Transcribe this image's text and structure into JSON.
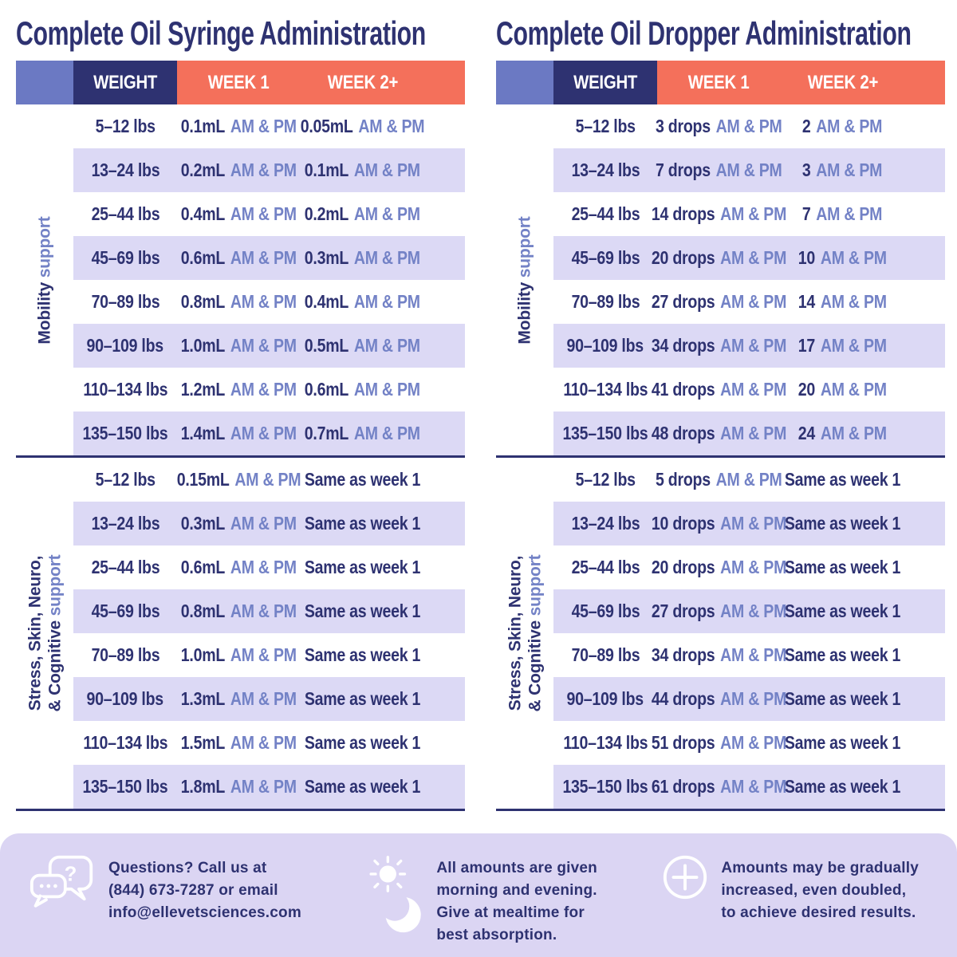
{
  "colors": {
    "navy": "#2E3271",
    "periwinkle_block": "#6B79C3",
    "periwinkle_text": "#7382C6",
    "coral": "#F4705B",
    "row_stripe": "#DCD9F5",
    "footer_background": "#DBD5F3",
    "white": "#FFFFFF"
  },
  "tables": [
    {
      "title": "Complete Oil Syringe Administration",
      "header": {
        "weight": "WEIGHT",
        "week1": "WEEK 1",
        "week2": "WEEK 2+"
      },
      "sections": [
        {
          "label": [
            {
              "dark": "Mobility ",
              "light": "support"
            }
          ],
          "rows": [
            {
              "weight": "5–12 lbs",
              "week1": {
                "value": "0.1mL",
                "ampm": "AM & PM"
              },
              "week2": {
                "value": "0.05mL",
                "ampm": "AM & PM"
              }
            },
            {
              "weight": "13–24 lbs",
              "week1": {
                "value": "0.2mL",
                "ampm": "AM & PM"
              },
              "week2": {
                "value": "0.1mL",
                "ampm": "AM & PM"
              }
            },
            {
              "weight": "25–44 lbs",
              "week1": {
                "value": "0.4mL",
                "ampm": "AM & PM"
              },
              "week2": {
                "value": "0.2mL",
                "ampm": "AM & PM"
              }
            },
            {
              "weight": "45–69 lbs",
              "week1": {
                "value": "0.6mL",
                "ampm": "AM & PM"
              },
              "week2": {
                "value": "0.3mL",
                "ampm": "AM & PM"
              }
            },
            {
              "weight": "70–89 lbs",
              "week1": {
                "value": "0.8mL",
                "ampm": "AM & PM"
              },
              "week2": {
                "value": "0.4mL",
                "ampm": "AM & PM"
              }
            },
            {
              "weight": "90–109 lbs",
              "week1": {
                "value": "1.0mL",
                "ampm": "AM & PM"
              },
              "week2": {
                "value": "0.5mL",
                "ampm": "AM & PM"
              }
            },
            {
              "weight": "110–134 lbs",
              "week1": {
                "value": "1.2mL",
                "ampm": "AM & PM"
              },
              "week2": {
                "value": "0.6mL",
                "ampm": "AM & PM"
              }
            },
            {
              "weight": "135–150 lbs",
              "week1": {
                "value": "1.4mL",
                "ampm": "AM & PM"
              },
              "week2": {
                "value": "0.7mL",
                "ampm": "AM & PM"
              }
            }
          ]
        },
        {
          "label": [
            {
              "dark": "Stress, Skin, Neuro,",
              "light": ""
            },
            {
              "dark": "& Cognitive ",
              "light": "support"
            }
          ],
          "rows": [
            {
              "weight": "5–12 lbs",
              "week1": {
                "value": "0.15mL",
                "ampm": "AM & PM"
              },
              "week2": {
                "value": "Same as week 1",
                "ampm": ""
              }
            },
            {
              "weight": "13–24 lbs",
              "week1": {
                "value": "0.3mL",
                "ampm": "AM & PM"
              },
              "week2": {
                "value": "Same as week 1",
                "ampm": ""
              }
            },
            {
              "weight": "25–44 lbs",
              "week1": {
                "value": "0.6mL",
                "ampm": "AM & PM"
              },
              "week2": {
                "value": "Same as week 1",
                "ampm": ""
              }
            },
            {
              "weight": "45–69 lbs",
              "week1": {
                "value": "0.8mL",
                "ampm": "AM & PM"
              },
              "week2": {
                "value": "Same as week 1",
                "ampm": ""
              }
            },
            {
              "weight": "70–89 lbs",
              "week1": {
                "value": "1.0mL",
                "ampm": "AM & PM"
              },
              "week2": {
                "value": "Same as week 1",
                "ampm": ""
              }
            },
            {
              "weight": "90–109 lbs",
              "week1": {
                "value": "1.3mL",
                "ampm": "AM & PM"
              },
              "week2": {
                "value": "Same as week 1",
                "ampm": ""
              }
            },
            {
              "weight": "110–134 lbs",
              "week1": {
                "value": "1.5mL",
                "ampm": "AM & PM"
              },
              "week2": {
                "value": "Same as week 1",
                "ampm": ""
              }
            },
            {
              "weight": "135–150 lbs",
              "week1": {
                "value": "1.8mL",
                "ampm": "AM & PM"
              },
              "week2": {
                "value": "Same as week 1",
                "ampm": ""
              }
            }
          ]
        }
      ]
    },
    {
      "title": "Complete Oil Dropper Administration",
      "header": {
        "weight": "WEIGHT",
        "week1": "WEEK 1",
        "week2": "WEEK 2+"
      },
      "sections": [
        {
          "label": [
            {
              "dark": "Mobility ",
              "light": "support"
            }
          ],
          "rows": [
            {
              "weight": "5–12 lbs",
              "week1": {
                "value": "3 drops",
                "ampm": "AM & PM"
              },
              "week2": {
                "value": "2",
                "ampm": "AM & PM"
              }
            },
            {
              "weight": "13–24 lbs",
              "week1": {
                "value": "7 drops",
                "ampm": "AM & PM"
              },
              "week2": {
                "value": "3",
                "ampm": "AM & PM"
              }
            },
            {
              "weight": "25–44 lbs",
              "week1": {
                "value": "14 drops",
                "ampm": "AM & PM"
              },
              "week2": {
                "value": "7",
                "ampm": "AM & PM"
              }
            },
            {
              "weight": "45–69 lbs",
              "week1": {
                "value": "20 drops",
                "ampm": "AM & PM"
              },
              "week2": {
                "value": "10",
                "ampm": "AM & PM"
              }
            },
            {
              "weight": "70–89 lbs",
              "week1": {
                "value": "27 drops",
                "ampm": "AM & PM"
              },
              "week2": {
                "value": "14",
                "ampm": "AM & PM"
              }
            },
            {
              "weight": "90–109 lbs",
              "week1": {
                "value": "34 drops",
                "ampm": "AM & PM"
              },
              "week2": {
                "value": "17",
                "ampm": "AM & PM"
              }
            },
            {
              "weight": "110–134 lbs",
              "week1": {
                "value": "41 drops",
                "ampm": "AM & PM"
              },
              "week2": {
                "value": "20",
                "ampm": "AM & PM"
              }
            },
            {
              "weight": "135–150 lbs",
              "week1": {
                "value": "48 drops",
                "ampm": "AM & PM"
              },
              "week2": {
                "value": "24",
                "ampm": "AM & PM"
              }
            }
          ]
        },
        {
          "label": [
            {
              "dark": "Stress, Skin, Neuro,",
              "light": ""
            },
            {
              "dark": "& Cognitive ",
              "light": "support"
            }
          ],
          "rows": [
            {
              "weight": "5–12 lbs",
              "week1": {
                "value": "5 drops",
                "ampm": "AM & PM"
              },
              "week2": {
                "value": "Same as week 1",
                "ampm": ""
              }
            },
            {
              "weight": "13–24 lbs",
              "week1": {
                "value": "10 drops",
                "ampm": "AM & PM"
              },
              "week2": {
                "value": "Same as week 1",
                "ampm": ""
              }
            },
            {
              "weight": "25–44 lbs",
              "week1": {
                "value": "20 drops",
                "ampm": "AM & PM"
              },
              "week2": {
                "value": "Same as week 1",
                "ampm": ""
              }
            },
            {
              "weight": "45–69 lbs",
              "week1": {
                "value": "27 drops",
                "ampm": "AM & PM"
              },
              "week2": {
                "value": "Same as week 1",
                "ampm": ""
              }
            },
            {
              "weight": "70–89 lbs",
              "week1": {
                "value": "34 drops",
                "ampm": "AM & PM"
              },
              "week2": {
                "value": "Same as week 1",
                "ampm": ""
              }
            },
            {
              "weight": "90–109 lbs",
              "week1": {
                "value": "44 drops",
                "ampm": "AM & PM"
              },
              "week2": {
                "value": "Same as week 1",
                "ampm": ""
              }
            },
            {
              "weight": "110–134 lbs",
              "week1": {
                "value": "51 drops",
                "ampm": "AM & PM"
              },
              "week2": {
                "value": "Same as week 1",
                "ampm": ""
              }
            },
            {
              "weight": "135–150 lbs",
              "week1": {
                "value": "61 drops",
                "ampm": "AM & PM"
              },
              "week2": {
                "value": "Same as week 1",
                "ampm": ""
              }
            }
          ]
        }
      ]
    }
  ],
  "footer": {
    "items": [
      {
        "icon": "chat-bubbles-icon",
        "text": "Questions? Call us at\n(844) 673-7287 or email\ninfo@ellevetsciences.com"
      },
      {
        "icon": "sun-moon-icon",
        "text": "All amounts are given\nmorning and evening.\nGive at mealtime for\nbest absorption."
      },
      {
        "icon": "plus-circle-icon",
        "text": "Amounts may be gradually\nincreased, even doubled,\nto achieve desired results."
      }
    ]
  }
}
